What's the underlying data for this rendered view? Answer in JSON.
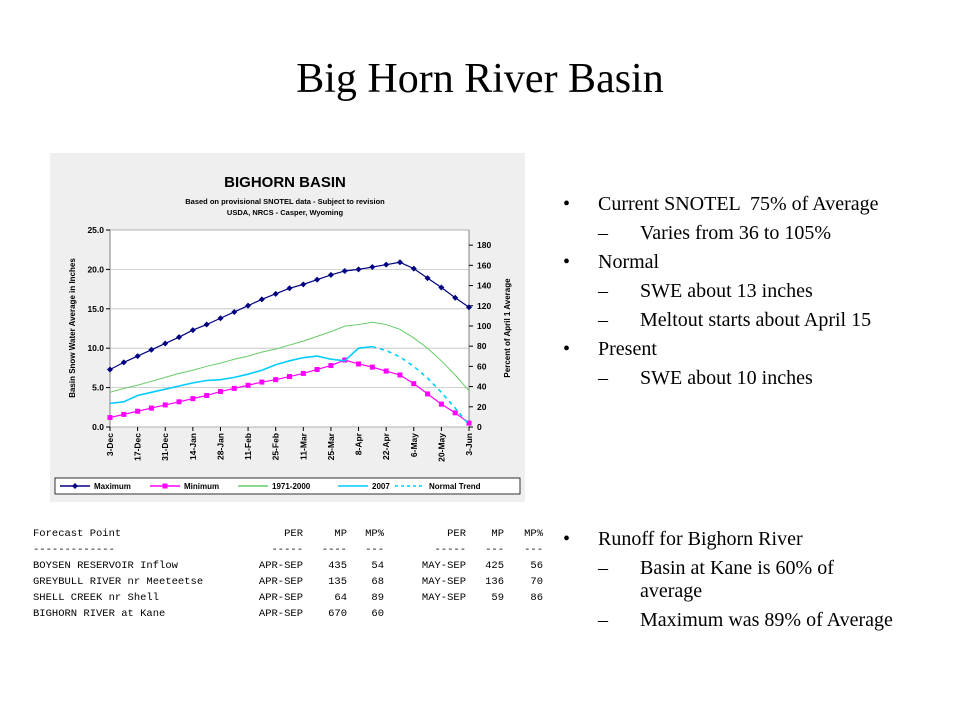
{
  "title": "Big Horn River Basin",
  "bullet_groups": [
    [
      {
        "text": "Current SNOTEL  75% of Average",
        "level": 1
      },
      {
        "text": "Varies from 36 to 105%",
        "level": 2
      },
      {
        "text": "Normal",
        "level": 1
      },
      {
        "text": "SWE about 13 inches",
        "level": 2
      },
      {
        "text": "Meltout starts about April 15",
        "level": 2
      },
      {
        "text": "Present",
        "level": 1
      },
      {
        "text": "SWE about 10 inches",
        "level": 2
      }
    ],
    [
      {
        "text": "Runoff for Bighorn River",
        "level": 1
      },
      {
        "text": "Basin at Kane is 60% of average",
        "level": 2
      },
      {
        "text": "Maximum was 89% of Average",
        "level": 2
      }
    ]
  ],
  "forecast_table": {
    "header": [
      "Forecast Point",
      "PER",
      "MP",
      "MP%",
      "PER",
      "MP",
      "MP%"
    ],
    "separator": [
      "-------------",
      "-----",
      "----",
      "---",
      "-----",
      "---",
      "---"
    ],
    "rows": [
      [
        "BOYSEN RESERVOIR Inflow",
        "APR-SEP",
        "435",
        "54",
        "MAY-SEP",
        "425",
        "56"
      ],
      [
        "GREYBULL RIVER nr Meeteetse",
        "APR-SEP",
        "135",
        "68",
        "MAY-SEP",
        "136",
        "70"
      ],
      [
        "SHELL CREEK nr Shell",
        "APR-SEP",
        "64",
        "89",
        "MAY-SEP",
        "59",
        "86"
      ],
      [
        "BIGHORN RIVER at Kane",
        "APR-SEP",
        "670",
        "60"
      ]
    ]
  },
  "chart_data": {
    "type": "line",
    "title": "BIGHORN BASIN",
    "subtitle": [
      "Based on provisional SNOTEL data - Subject to revision",
      "USDA, NRCS - Casper, Wyoming"
    ],
    "ylabel": "Basin Snow Water Average in Inches",
    "y2label": "Percent of April 1 Average",
    "categories": [
      "3-Dec",
      null,
      "17-Dec",
      null,
      "31-Dec",
      null,
      "14-Jan",
      null,
      "28-Jan",
      null,
      "11-Feb",
      null,
      "25-Feb",
      null,
      "11-Mar",
      null,
      "25-Mar",
      null,
      "8-Apr",
      null,
      "22-Apr",
      null,
      "6-May",
      null,
      "20-May",
      null,
      "3-Jun"
    ],
    "ylim": [
      0,
      25
    ],
    "yticks": [
      {
        "value": 0,
        "label": "0.0"
      },
      {
        "value": 5,
        "label": "5.0"
      },
      {
        "value": 10,
        "label": "10.0"
      },
      {
        "value": 15,
        "label": "15.0"
      },
      {
        "value": 20,
        "label": "20.0"
      },
      {
        "value": 25,
        "label": "25.0"
      }
    ],
    "y2lim": [
      0,
      195
    ],
    "y2ticks": [
      0,
      20,
      40,
      60,
      80,
      100,
      120,
      140,
      160,
      180
    ],
    "grid": true,
    "series": [
      {
        "name": "Maximum",
        "color": "#000080",
        "marker": "diamond",
        "values": [
          7.3,
          8.2,
          9.0,
          9.8,
          10.6,
          11.4,
          12.3,
          13.0,
          13.8,
          14.6,
          15.4,
          16.2,
          16.9,
          17.6,
          18.1,
          18.7,
          19.3,
          19.8,
          20.0,
          20.3,
          20.6,
          20.9,
          20.1,
          18.9,
          17.7,
          16.4,
          15.2
        ]
      },
      {
        "name": "Minimum",
        "color": "#ff00ff",
        "marker": "square",
        "values": [
          1.2,
          1.6,
          2.0,
          2.4,
          2.8,
          3.2,
          3.6,
          4.0,
          4.5,
          4.9,
          5.3,
          5.7,
          6.0,
          6.4,
          6.8,
          7.3,
          7.8,
          8.5,
          8.0,
          7.6,
          7.1,
          6.6,
          5.5,
          4.2,
          2.9,
          1.8,
          0.5
        ]
      },
      {
        "name": "1971-2000",
        "color": "#66cc66",
        "marker": "none",
        "values": [
          4.4,
          4.9,
          5.3,
          5.8,
          6.3,
          6.8,
          7.2,
          7.7,
          8.1,
          8.6,
          9.0,
          9.5,
          9.9,
          10.4,
          10.9,
          11.5,
          12.1,
          12.8,
          13.0,
          13.3,
          13.0,
          12.4,
          11.3,
          10.0,
          8.4,
          6.6,
          4.6
        ]
      },
      {
        "name": "2007",
        "color": "#00ccff",
        "marker": "none",
        "values": [
          3.0,
          3.2,
          4.0,
          4.4,
          4.8,
          5.2,
          5.6,
          5.9,
          6.0,
          6.3,
          6.7,
          7.2,
          7.9,
          8.4,
          8.8,
          9.0,
          8.6,
          8.4,
          10.0,
          10.2,
          null,
          null,
          null,
          null,
          null,
          null,
          null
        ]
      },
      {
        "name": "Normal Trend",
        "color": "#00ccff",
        "marker": "none",
        "dash": true,
        "values": [
          null,
          null,
          null,
          null,
          null,
          null,
          null,
          null,
          null,
          null,
          null,
          null,
          null,
          null,
          null,
          null,
          null,
          null,
          null,
          10.2,
          9.7,
          8.9,
          7.7,
          6.2,
          4.4,
          2.4,
          0.3
        ]
      }
    ]
  }
}
